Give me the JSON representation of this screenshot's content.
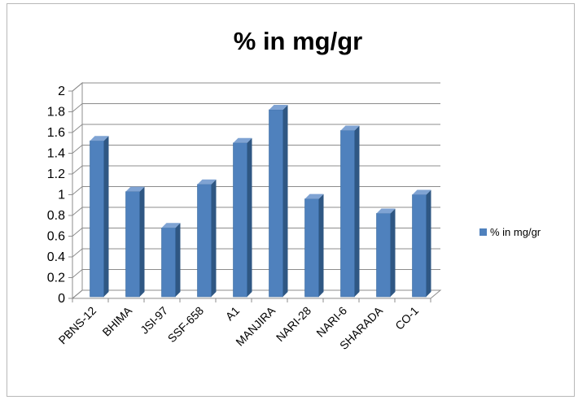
{
  "chart_data": {
    "type": "bar",
    "title": "% in mg/gr",
    "categories": [
      "PBNS-12",
      "BHIMA",
      "JSI-97",
      "SSF-658",
      "A1",
      "MANJIRA",
      "NARI-28",
      "NARI-6",
      "SHARADA",
      "CO-1"
    ],
    "series": [
      {
        "name": "% in mg/gr",
        "values": [
          1.52,
          1.03,
          0.68,
          1.1,
          1.5,
          1.82,
          0.96,
          1.62,
          0.82,
          1.0
        ],
        "color": "#4f81bd"
      }
    ],
    "ylim": [
      0,
      2
    ],
    "y_ticks": [
      "0",
      "0.2",
      "0.4",
      "0.6",
      "0.8",
      "1",
      "1.2",
      "1.4",
      "1.6",
      "1.8",
      "2"
    ],
    "xlabel": "",
    "ylabel": "",
    "grid": true,
    "style": "3d-column",
    "legend_position": "right"
  }
}
